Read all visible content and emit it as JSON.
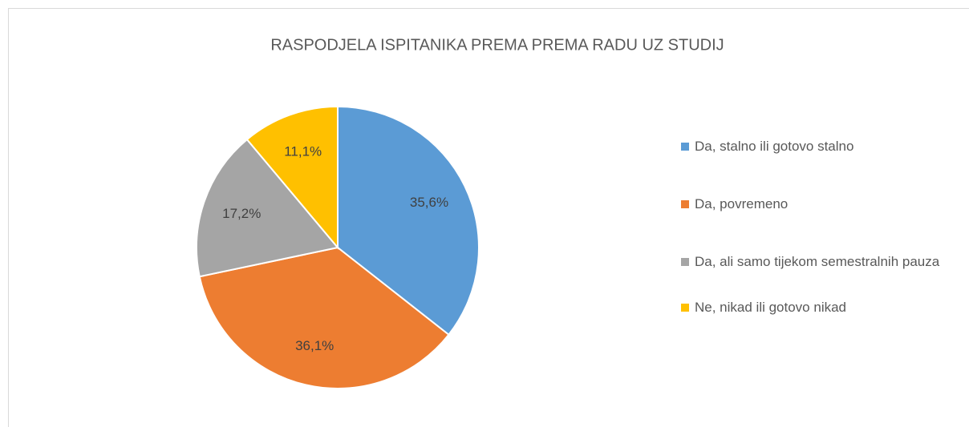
{
  "chart_data": {
    "type": "pie",
    "title": "RASPODJELA ISPITANIKA PREMA PREMA RADU UZ STUDIJ",
    "categories": [
      "Da, stalno ili gotovo stalno",
      "Da, povremeno",
      "Da, ali samo tijekom semestralnih pauza",
      "Ne, nikad ili gotovo nikad"
    ],
    "values": [
      35.6,
      36.1,
      17.2,
      11.1
    ],
    "value_labels": [
      "35,6%",
      "36,1%",
      "17,2%",
      "11,1%"
    ],
    "colors": [
      "#5b9bd5",
      "#ed7d31",
      "#a5a5a5",
      "#ffc000"
    ],
    "legend": "right"
  }
}
